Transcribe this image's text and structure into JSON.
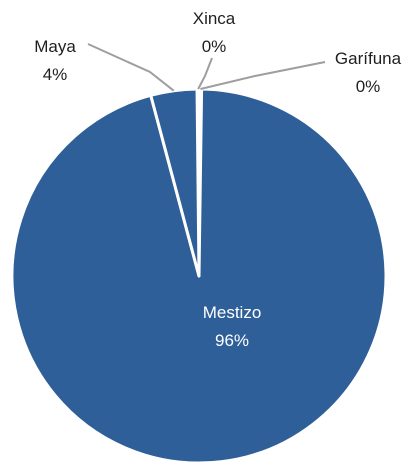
{
  "chart_data": {
    "type": "pie",
    "title": "",
    "slices": [
      {
        "label": "Mestizo",
        "value": 96,
        "display": "96%"
      },
      {
        "label": "Maya",
        "value": 4,
        "display": "4%"
      },
      {
        "label": "Xinca",
        "value": 0,
        "display": "0%"
      },
      {
        "label": "Garífuna",
        "value": 0,
        "display": "0%"
      }
    ],
    "colors": {
      "slice_fill": "#2e5f98",
      "slice_border": "#ffffff",
      "leader_line": "#9e9e9e",
      "inside_label": "#ffffff",
      "outside_label": "#1f1f1f"
    },
    "legend": "none",
    "label_style": "category and percentage"
  }
}
